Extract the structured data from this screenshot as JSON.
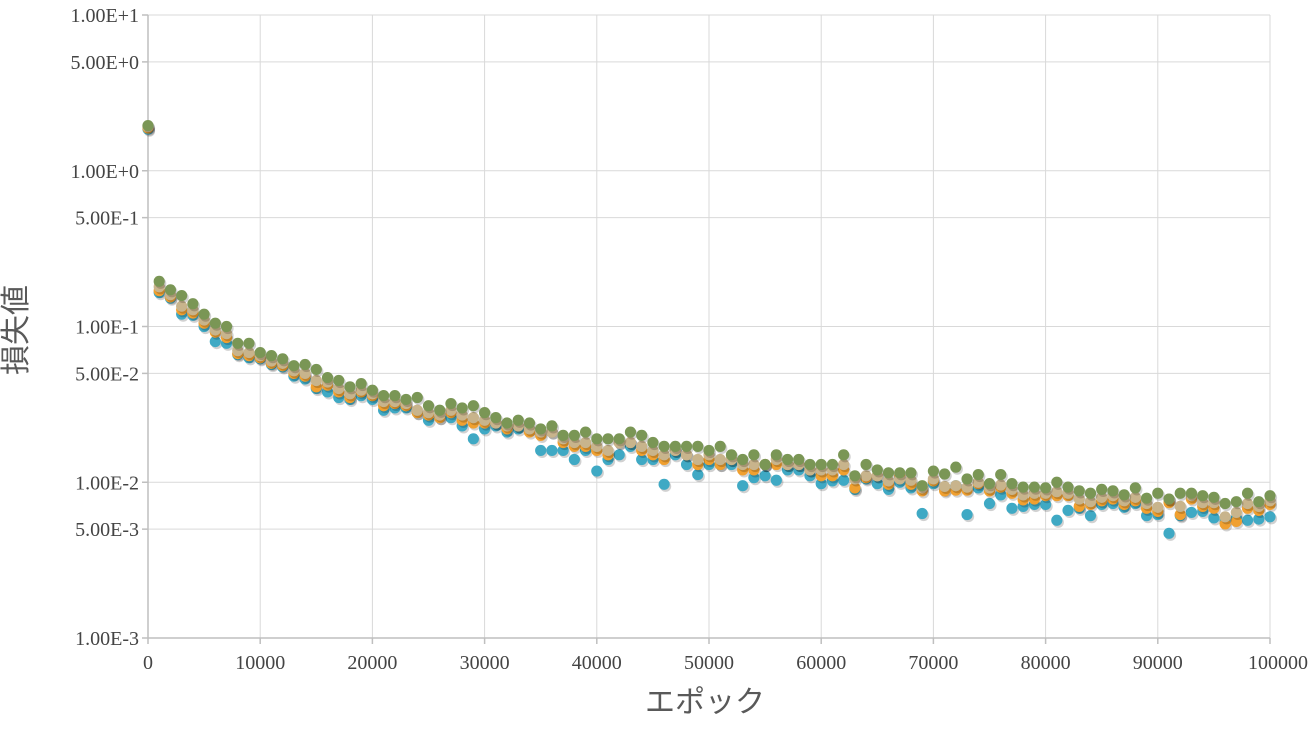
{
  "chart_data": {
    "type": "scatter",
    "xlabel": "エポック",
    "ylabel": "損失値",
    "xlim": [
      0,
      100000
    ],
    "ylim": [
      0.001,
      10
    ],
    "y_scale": "log",
    "grid": true,
    "x_ticks": [
      {
        "value": 0,
        "label": "0"
      },
      {
        "value": 10000,
        "label": "10000"
      },
      {
        "value": 20000,
        "label": "20000"
      },
      {
        "value": 30000,
        "label": "30000"
      },
      {
        "value": 40000,
        "label": "40000"
      },
      {
        "value": 50000,
        "label": "50000"
      },
      {
        "value": 60000,
        "label": "60000"
      },
      {
        "value": 70000,
        "label": "70000"
      },
      {
        "value": 80000,
        "label": "80000"
      },
      {
        "value": 90000,
        "label": "90000"
      },
      {
        "value": 100000,
        "label": "100000"
      }
    ],
    "y_ticks": [
      {
        "value": 10,
        "label": "1.00E+1"
      },
      {
        "value": 5,
        "label": "5.00E+0"
      },
      {
        "value": 1,
        "label": "1.00E+0"
      },
      {
        "value": 0.5,
        "label": "5.00E-1"
      },
      {
        "value": 0.1,
        "label": "1.00E-1"
      },
      {
        "value": 0.05,
        "label": "5.00E-2"
      },
      {
        "value": 0.01,
        "label": "1.00E-2"
      },
      {
        "value": 0.005,
        "label": "5.00E-3"
      },
      {
        "value": 0.001,
        "label": "1.00E-3"
      }
    ],
    "x": [
      0,
      1000,
      2000,
      3000,
      4000,
      5000,
      6000,
      7000,
      8000,
      9000,
      10000,
      11000,
      12000,
      13000,
      14000,
      15000,
      16000,
      17000,
      18000,
      19000,
      20000,
      21000,
      22000,
      23000,
      24000,
      25000,
      26000,
      27000,
      28000,
      29000,
      30000,
      31000,
      32000,
      33000,
      34000,
      35000,
      36000,
      37000,
      38000,
      39000,
      40000,
      41000,
      42000,
      43000,
      44000,
      45000,
      46000,
      47000,
      48000,
      49000,
      50000,
      51000,
      52000,
      53000,
      54000,
      55000,
      56000,
      57000,
      58000,
      59000,
      60000,
      61000,
      62000,
      63000,
      64000,
      65000,
      66000,
      67000,
      68000,
      69000,
      70000,
      71000,
      72000,
      73000,
      74000,
      75000,
      76000,
      77000,
      78000,
      79000,
      80000,
      81000,
      82000,
      83000,
      84000,
      85000,
      86000,
      87000,
      88000,
      89000,
      90000,
      91000,
      92000,
      93000,
      94000,
      95000,
      96000,
      97000,
      98000,
      99000,
      100000
    ],
    "series": [
      {
        "color": "#3fa9c4",
        "values": [
          1.85,
          0.165,
          0.152,
          0.12,
          0.118,
          0.1,
          0.08,
          0.078,
          0.066,
          0.063,
          0.062,
          0.057,
          0.055,
          0.048,
          0.046,
          0.04,
          0.038,
          0.035,
          0.034,
          0.036,
          0.034,
          0.029,
          0.03,
          0.03,
          0.028,
          0.025,
          0.026,
          0.026,
          0.023,
          0.019,
          0.022,
          0.023,
          0.021,
          0.022,
          0.022,
          0.016,
          0.016,
          0.016,
          0.014,
          0.016,
          0.0118,
          0.014,
          0.015,
          0.017,
          0.014,
          0.014,
          0.0097,
          0.015,
          0.013,
          0.0112,
          0.013,
          0.013,
          0.013,
          0.0095,
          0.0107,
          0.011,
          0.0103,
          0.012,
          0.012,
          0.011,
          0.0098,
          0.0102,
          0.0103,
          0.009,
          0.0105,
          0.0098,
          0.009,
          0.01,
          0.0092,
          0.0063,
          0.0098,
          0.009,
          0.0095,
          0.0062,
          0.0092,
          0.0073,
          0.0083,
          0.0068,
          0.007,
          0.0072,
          0.0072,
          0.0057,
          0.0066,
          0.0068,
          0.0061,
          0.0072,
          0.0073,
          0.0069,
          0.0073,
          0.0061,
          0.0062,
          0.0047,
          0.0061,
          0.0064,
          0.0065,
          0.0059,
          0.0057,
          0.0059,
          0.0057,
          0.0058,
          0.006
        ]
      },
      {
        "color": "#f0a030",
        "values": [
          1.88,
          0.17,
          0.155,
          0.128,
          0.122,
          0.105,
          0.092,
          0.085,
          0.067,
          0.065,
          0.063,
          0.058,
          0.056,
          0.05,
          0.048,
          0.041,
          0.042,
          0.038,
          0.035,
          0.038,
          0.036,
          0.031,
          0.032,
          0.031,
          0.028,
          0.027,
          0.026,
          0.028,
          0.025,
          0.024,
          0.024,
          0.024,
          0.022,
          0.023,
          0.021,
          0.02,
          0.021,
          0.018,
          0.017,
          0.017,
          0.016,
          0.015,
          0.018,
          0.018,
          0.016,
          0.015,
          0.014,
          0.016,
          0.015,
          0.013,
          0.014,
          0.013,
          0.014,
          0.012,
          0.012,
          0.013,
          0.013,
          0.013,
          0.013,
          0.012,
          0.011,
          0.011,
          0.012,
          0.0092,
          0.0107,
          0.011,
          0.0097,
          0.011,
          0.0097,
          0.0088,
          0.0102,
          0.0088,
          0.0089,
          0.0089,
          0.0098,
          0.0088,
          0.0093,
          0.0085,
          0.0077,
          0.0078,
          0.0082,
          0.0082,
          0.0082,
          0.007,
          0.0072,
          0.0076,
          0.0078,
          0.0072,
          0.0076,
          0.0068,
          0.0065,
          0.0074,
          0.0062,
          0.0078,
          0.007,
          0.0068,
          0.0054,
          0.0056,
          0.0068,
          0.0066,
          0.0072
        ]
      },
      {
        "color": "#c8b48c",
        "values": [
          1.92,
          0.18,
          0.16,
          0.135,
          0.128,
          0.11,
          0.095,
          0.09,
          0.07,
          0.068,
          0.065,
          0.06,
          0.058,
          0.052,
          0.05,
          0.045,
          0.044,
          0.04,
          0.037,
          0.039,
          0.037,
          0.033,
          0.033,
          0.032,
          0.029,
          0.028,
          0.027,
          0.029,
          0.027,
          0.026,
          0.025,
          0.024,
          0.023,
          0.023,
          0.022,
          0.021,
          0.021,
          0.019,
          0.018,
          0.018,
          0.017,
          0.016,
          0.018,
          0.018,
          0.017,
          0.016,
          0.015,
          0.016,
          0.015,
          0.014,
          0.015,
          0.014,
          0.014,
          0.013,
          0.013,
          0.013,
          0.014,
          0.013,
          0.013,
          0.012,
          0.012,
          0.012,
          0.013,
          0.0105,
          0.011,
          0.011,
          0.0102,
          0.0105,
          0.0103,
          0.0092,
          0.0105,
          0.0094,
          0.0095,
          0.0093,
          0.01,
          0.0092,
          0.0096,
          0.009,
          0.0083,
          0.0085,
          0.0085,
          0.0087,
          0.0085,
          0.0078,
          0.0075,
          0.008,
          0.0082,
          0.0076,
          0.008,
          0.0073,
          0.0069,
          0.0078,
          0.007,
          0.0082,
          0.0074,
          0.0074,
          0.006,
          0.0064,
          0.0073,
          0.007,
          0.0076
        ]
      },
      {
        "color": "#7a9655",
        "values": [
          1.95,
          0.195,
          0.172,
          0.158,
          0.14,
          0.12,
          0.105,
          0.1,
          0.078,
          0.078,
          0.068,
          0.065,
          0.062,
          0.056,
          0.057,
          0.053,
          0.047,
          0.045,
          0.041,
          0.043,
          0.039,
          0.036,
          0.036,
          0.034,
          0.035,
          0.031,
          0.029,
          0.032,
          0.03,
          0.031,
          0.028,
          0.026,
          0.024,
          0.025,
          0.024,
          0.022,
          0.023,
          0.02,
          0.02,
          0.021,
          0.019,
          0.019,
          0.019,
          0.021,
          0.02,
          0.018,
          0.017,
          0.017,
          0.017,
          0.017,
          0.016,
          0.017,
          0.015,
          0.014,
          0.015,
          0.013,
          0.015,
          0.014,
          0.014,
          0.013,
          0.013,
          0.013,
          0.015,
          0.011,
          0.013,
          0.012,
          0.0115,
          0.0115,
          0.0115,
          0.0095,
          0.0118,
          0.0113,
          0.0125,
          0.0105,
          0.0112,
          0.0098,
          0.0112,
          0.0098,
          0.0093,
          0.0093,
          0.0092,
          0.01,
          0.0093,
          0.0088,
          0.0085,
          0.009,
          0.0088,
          0.0083,
          0.0092,
          0.0079,
          0.0085,
          0.0078,
          0.0085,
          0.0085,
          0.0082,
          0.008,
          0.0073,
          0.0075,
          0.0085,
          0.0075,
          0.0082
        ]
      }
    ]
  }
}
